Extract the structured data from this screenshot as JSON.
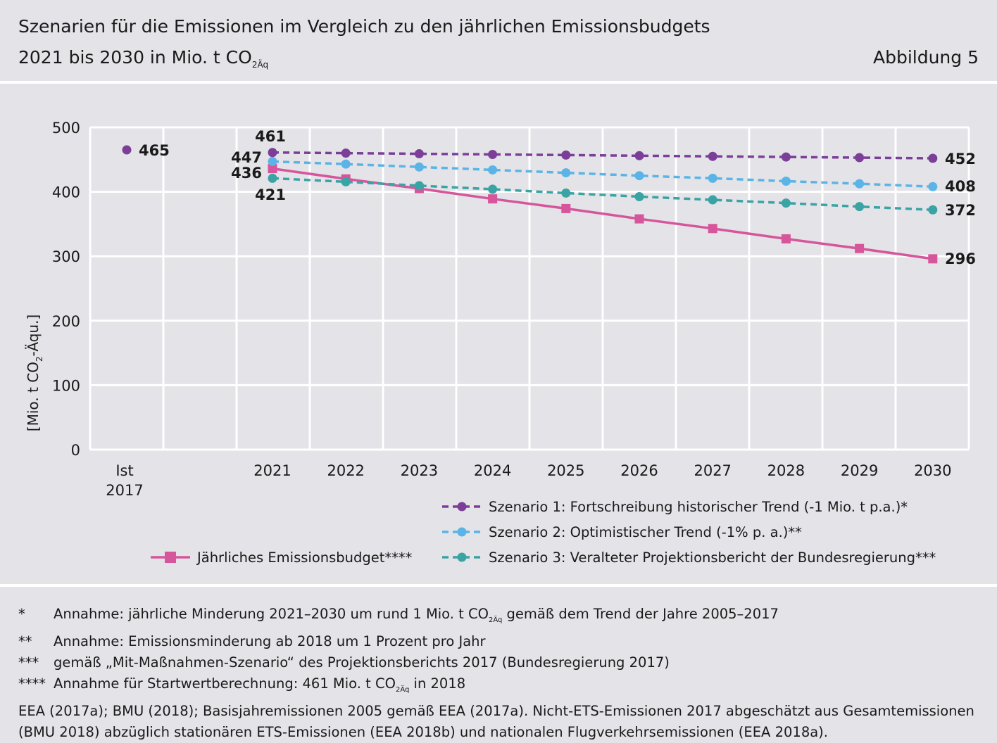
{
  "header": {
    "title": "Szenarien für die Emissionen im Vergleich zu den jährlichen Emissionsbudgets",
    "subtitle_main": "2021 bis 2030 in Mio. t CO",
    "subtitle_sub": "2Äq",
    "figure_number": "Abbildung 5"
  },
  "chart_data": {
    "type": "line",
    "ylabel_main": "[Mio. t CO",
    "ylabel_sub": "2",
    "ylabel_tail": "-Äqu.]",
    "ylim": [
      0,
      500
    ],
    "yticks": [
      0,
      100,
      200,
      300,
      400,
      500
    ],
    "grid": true,
    "ist": {
      "label_line1": "Ist",
      "label_line2": "2017",
      "value": 465,
      "color": "#7b3f98"
    },
    "x": [
      2021,
      2022,
      2023,
      2024,
      2025,
      2026,
      2027,
      2028,
      2029,
      2030
    ],
    "series": [
      {
        "name": "Szenario 1: Fortschreibung historischer Trend (-1 Mio. t p.a.)*",
        "color": "#7b3f98",
        "style": "dashed",
        "marker": "circle",
        "values": [
          461,
          460,
          459,
          458,
          457,
          456,
          455,
          454,
          453,
          452
        ],
        "start_label": "461",
        "end_label": "452"
      },
      {
        "name": "Szenario 2: Optimistischer Trend (-1% p. a.)**",
        "color": "#5ab4e5",
        "style": "dashed",
        "marker": "circle",
        "values": [
          447,
          443,
          438.5,
          434,
          429.5,
          425,
          421,
          416.5,
          412.5,
          408
        ],
        "start_label": "447",
        "end_label": "408"
      },
      {
        "name": "Szenario 3: Veralteter Projektionsbericht der Bundesregierung***",
        "color": "#3aa3a3",
        "style": "dashed",
        "marker": "circle",
        "values": [
          421,
          415.5,
          409.5,
          404,
          398,
          392.5,
          387.5,
          382.5,
          377,
          372
        ],
        "start_label": "421",
        "end_label": "372"
      },
      {
        "name": "Jährliches Emissionsbudget****",
        "color": "#d6559b",
        "style": "solid",
        "marker": "square",
        "values": [
          436,
          420,
          405,
          389,
          374,
          358,
          343,
          327,
          312,
          296
        ],
        "start_label": "436",
        "end_label": "296"
      }
    ]
  },
  "footnotes": [
    {
      "mark": "*",
      "text": "Annahme: jährliche Minderung 2021–2030 um rund 1 Mio. t CO",
      "sub": "2Äq",
      "tail": " gemäß dem Trend der Jahre 2005–2017"
    },
    {
      "mark": "**",
      "text": "Annahme: Emissionsminderung ab 2018 um 1 Prozent pro Jahr",
      "sub": "",
      "tail": ""
    },
    {
      "mark": "***",
      "text": "gemäß „Mit-Maßnahmen-Szenario“ des Projektionsberichts 2017 (Bundesregierung 2017)",
      "sub": "",
      "tail": ""
    },
    {
      "mark": "****",
      "text": "Annahme für Startwertberechnung: 461 Mio. t CO",
      "sub": "2Äq",
      "tail": " in 2018"
    }
  ],
  "source": {
    "line1": "EEA (2017a); BMU (2018); Basisjahremissionen 2005 gemäß EEA (2017a). Nicht-ETS-Emissionen 2017 abgeschätzt aus Gesamtemissionen",
    "line2": "(BMU 2018) abzüglich stationären ETS-Emissionen (EEA 2018b) und nationalen Flugverkehrsemissionen (EEA 2018a)."
  }
}
